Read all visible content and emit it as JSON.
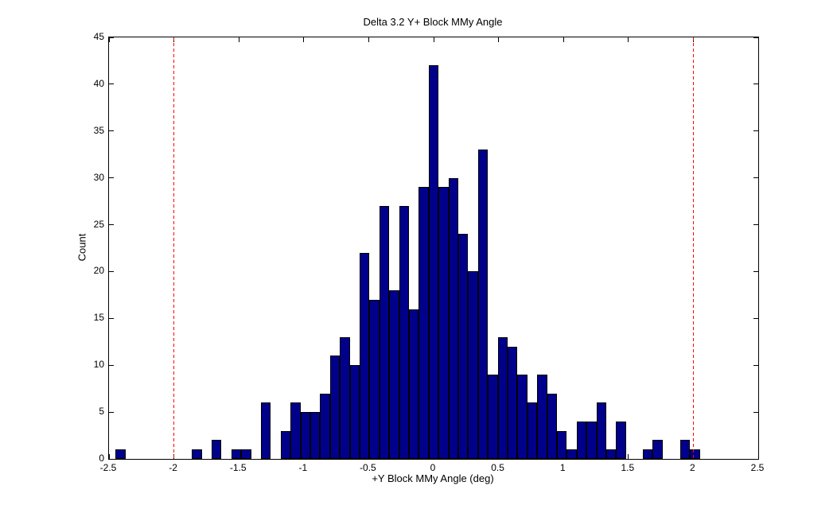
{
  "figure": {
    "title": "Delta 3.2 Y+ Block MMy Angle",
    "xlabel": "+Y Block MMy Angle (deg)",
    "ylabel": "Count"
  },
  "chart_data": {
    "type": "bar",
    "subtype": "histogram",
    "title": "Delta 3.2 Y+ Block MMy Angle",
    "xlabel": "+Y Block MMy Angle (deg)",
    "ylabel": "Count",
    "xlim": [
      -2.5,
      2.5
    ],
    "ylim": [
      0,
      45
    ],
    "grid": false,
    "legend": null,
    "x_tick_values": [
      -2.5,
      -2,
      -1.5,
      -1,
      -0.5,
      0,
      0.5,
      1,
      1.5,
      2,
      2.5
    ],
    "x_tick_labels": [
      "-2.5",
      "-2",
      "-1.5",
      "-1",
      "-0.5",
      "0",
      "0.5",
      "1",
      "1.5",
      "2",
      "2.5"
    ],
    "y_tick_values": [
      0,
      5,
      10,
      15,
      20,
      25,
      30,
      35,
      40,
      45
    ],
    "y_tick_labels": [
      "0",
      "5",
      "10",
      "15",
      "20",
      "25",
      "30",
      "35",
      "40",
      "45"
    ],
    "bar_color": "#00008b",
    "bar_edge_color": "#000000",
    "axis_color": "#000000",
    "vline_color": "#ff0000",
    "vline_style": "dashed",
    "vlines": [
      -2,
      2
    ],
    "bin_width": 0.076,
    "total_count": 500,
    "bars": [
      {
        "x0": -2.45,
        "x1": -2.374,
        "count": 1
      },
      {
        "x0": -1.862,
        "x1": -1.786,
        "count": 1
      },
      {
        "x0": -1.71,
        "x1": -1.634,
        "count": 2
      },
      {
        "x0": -1.558,
        "x1": -1.482,
        "count": 1
      },
      {
        "x0": -1.482,
        "x1": -1.406,
        "count": 1
      },
      {
        "x0": -1.33,
        "x1": -1.254,
        "count": 6
      },
      {
        "x0": -1.178,
        "x1": -1.102,
        "count": 3
      },
      {
        "x0": -1.102,
        "x1": -1.026,
        "count": 6
      },
      {
        "x0": -1.026,
        "x1": -0.95,
        "count": 5
      },
      {
        "x0": -0.95,
        "x1": -0.874,
        "count": 5
      },
      {
        "x0": -0.874,
        "x1": -0.798,
        "count": 7
      },
      {
        "x0": -0.798,
        "x1": -0.722,
        "count": 11
      },
      {
        "x0": -0.722,
        "x1": -0.646,
        "count": 13
      },
      {
        "x0": -0.646,
        "x1": -0.57,
        "count": 10
      },
      {
        "x0": -0.57,
        "x1": -0.494,
        "count": 22
      },
      {
        "x0": -0.494,
        "x1": -0.418,
        "count": 17
      },
      {
        "x0": -0.418,
        "x1": -0.342,
        "count": 27
      },
      {
        "x0": -0.342,
        "x1": -0.266,
        "count": 18
      },
      {
        "x0": -0.266,
        "x1": -0.19,
        "count": 27
      },
      {
        "x0": -0.19,
        "x1": -0.114,
        "count": 16
      },
      {
        "x0": -0.114,
        "x1": -0.038,
        "count": 29
      },
      {
        "x0": -0.038,
        "x1": 0.038,
        "count": 42
      },
      {
        "x0": 0.038,
        "x1": 0.114,
        "count": 29
      },
      {
        "x0": 0.114,
        "x1": 0.19,
        "count": 30
      },
      {
        "x0": 0.19,
        "x1": 0.266,
        "count": 24
      },
      {
        "x0": 0.266,
        "x1": 0.342,
        "count": 20
      },
      {
        "x0": 0.342,
        "x1": 0.418,
        "count": 33
      },
      {
        "x0": 0.418,
        "x1": 0.494,
        "count": 9
      },
      {
        "x0": 0.494,
        "x1": 0.57,
        "count": 13
      },
      {
        "x0": 0.57,
        "x1": 0.646,
        "count": 12
      },
      {
        "x0": 0.646,
        "x1": 0.722,
        "count": 9
      },
      {
        "x0": 0.722,
        "x1": 0.798,
        "count": 6
      },
      {
        "x0": 0.798,
        "x1": 0.874,
        "count": 9
      },
      {
        "x0": 0.874,
        "x1": 0.95,
        "count": 7
      },
      {
        "x0": 0.95,
        "x1": 1.026,
        "count": 3
      },
      {
        "x0": 1.026,
        "x1": 1.102,
        "count": 1
      },
      {
        "x0": 1.102,
        "x1": 1.178,
        "count": 4
      },
      {
        "x0": 1.178,
        "x1": 1.254,
        "count": 4
      },
      {
        "x0": 1.254,
        "x1": 1.33,
        "count": 6
      },
      {
        "x0": 1.33,
        "x1": 1.406,
        "count": 1
      },
      {
        "x0": 1.406,
        "x1": 1.482,
        "count": 4
      },
      {
        "x0": 1.61,
        "x1": 1.686,
        "count": 1
      },
      {
        "x0": 1.686,
        "x1": 1.762,
        "count": 2
      },
      {
        "x0": 1.9,
        "x1": 1.976,
        "count": 2
      },
      {
        "x0": 1.976,
        "x1": 2.052,
        "count": 1
      }
    ]
  }
}
